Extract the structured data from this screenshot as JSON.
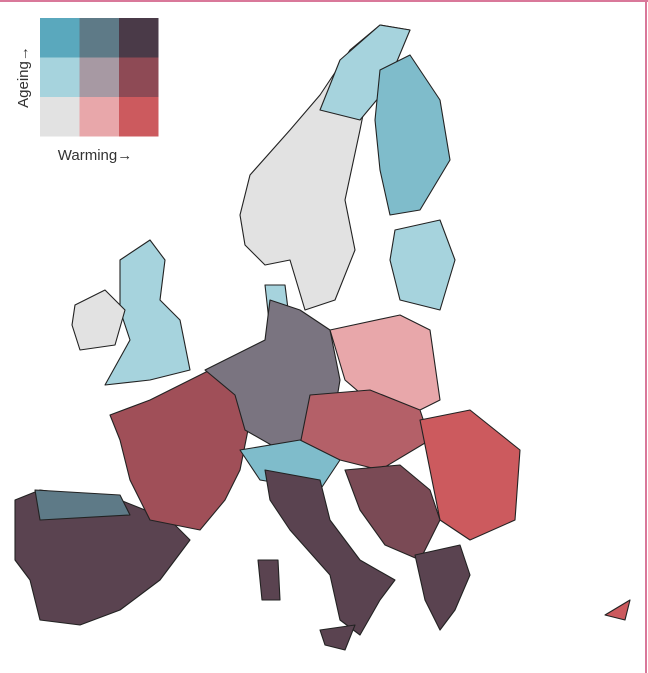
{
  "legend": {
    "y_label": "Ageing→",
    "x_label": "Warming→",
    "colors": [
      [
        "#5aa8bd",
        "#5e7a87",
        "#4a3a48"
      ],
      [
        "#a6d3dd",
        "#a799a3",
        "#8e4a55"
      ],
      [
        "#e2e2e2",
        "#e8a7aa",
        "#cc5a5e"
      ]
    ]
  }
}
